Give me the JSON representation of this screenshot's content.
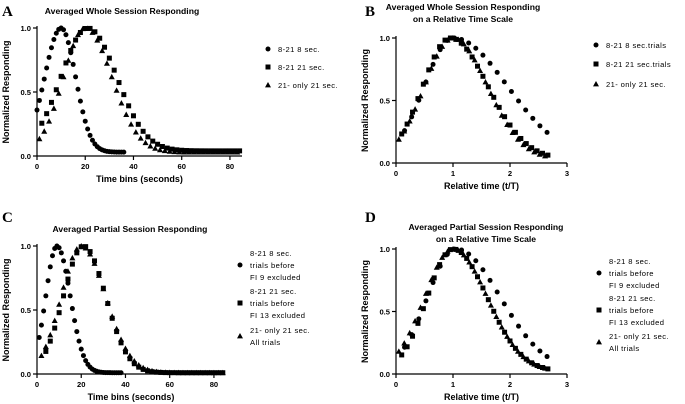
{
  "chart_data": [
    {
      "panel": "A",
      "type": "scatter",
      "title": "Averaged Whole Session Responding",
      "title2": "",
      "xlabel": "Time bins (seconds)",
      "ylabel": "Normalized Responding",
      "xlim": [
        0,
        85
      ],
      "ylim": [
        0,
        1.0
      ],
      "xticks": [
        0,
        20,
        40,
        60,
        80
      ],
      "yticks": [
        0.0,
        0.5,
        1.0
      ],
      "series": [
        {
          "name": "8-21 8 sec.",
          "marker": "circle",
          "shape": "gauss",
          "mu": 10,
          "s1": 6.8,
          "s2": 6.0,
          "base": 0.03,
          "start": 0,
          "step": 1,
          "stop": 36,
          "pad": 0.02
        },
        {
          "name": "8-21 21 sec.",
          "marker": "square",
          "shape": "gauss",
          "mu": 21,
          "s1": 11,
          "s2": 12,
          "base": 0.04,
          "start": 2,
          "step": 2,
          "stop": 84,
          "pad": 0.02
        },
        {
          "name": "21- only 21 sec.",
          "marker": "triangle",
          "shape": "gauss",
          "mu": 20,
          "s1": 9,
          "s2": 11,
          "base": 0.03,
          "start": 1,
          "step": 2,
          "stop": 83,
          "pad": 0.02
        }
      ],
      "legend": [
        [
          "8-21 8 sec."
        ],
        [
          "8-21 21 sec."
        ],
        [
          "21- only 21 sec."
        ]
      ]
    },
    {
      "panel": "B",
      "type": "scatter",
      "title": "Averaged Whole Session Responding",
      "title2": "on a Relative Time Scale",
      "xlabel": "Relative time (t/T)",
      "ylabel": "Normalized Responding",
      "xlim": [
        0,
        3.0
      ],
      "ylim": [
        0,
        1.0
      ],
      "xticks": [
        0,
        1,
        2,
        3
      ],
      "yticks": [
        0.0,
        0.5,
        1.0
      ],
      "series": [
        {
          "name": "8-21 8 sec.trials",
          "marker": "circle",
          "shape": "gauss",
          "mu": 1.0,
          "s1": 0.5,
          "s2": 0.95,
          "base": 0.03,
          "start": 0.15,
          "step": 0.125,
          "stop": 2.75,
          "pad": 0.015
        },
        {
          "name": "8-21 21 sec.trials",
          "marker": "square",
          "shape": "gauss",
          "mu": 0.95,
          "s1": 0.48,
          "s2": 0.66,
          "base": 0.03,
          "start": 0.1,
          "step": 0.095,
          "stop": 2.75,
          "pad": 0.015
        },
        {
          "name": "21- only 21 sec.",
          "marker": "triangle",
          "shape": "gauss",
          "mu": 1.0,
          "s1": 0.5,
          "s2": 0.6,
          "base": 0.03,
          "start": 0.05,
          "step": 0.095,
          "stop": 2.7,
          "pad": 0.015
        }
      ],
      "legend": [
        [
          "8-21 8 sec.trials"
        ],
        [
          "8-21 21 sec.trials"
        ],
        [
          "21- only 21 sec."
        ]
      ]
    },
    {
      "panel": "C",
      "type": "scatter",
      "title": "Averaged Partial Session Responding",
      "title2": "",
      "xlabel": "Time bins (seconds)",
      "ylabel": "Normalized Responding",
      "xlim": [
        0,
        85
      ],
      "ylim": [
        0,
        1.0
      ],
      "xticks": [
        0,
        20,
        40,
        60,
        80
      ],
      "yticks": [
        0.0,
        0.5,
        1.0
      ],
      "series": [
        {
          "name": "8-21 8 sec. trials before FI 9 excluded",
          "marker": "circle",
          "shape": "gauss",
          "mu": 9,
          "s1": 5,
          "s2": 6,
          "base": 0.01,
          "start": 1,
          "step": 1,
          "stop": 38,
          "pad": 0.01
        },
        {
          "name": "8-21 21 sec. trials before FI 13 excluded",
          "marker": "square",
          "shape": "gauss",
          "mu": 21,
          "s1": 9,
          "s2": 10,
          "base": 0.01,
          "start": 4,
          "step": 2,
          "stop": 84,
          "pad": 0.01
        },
        {
          "name": "21- only 21 sec. All trials",
          "marker": "triangle",
          "shape": "gauss",
          "mu": 20,
          "s1": 9,
          "s2": 11,
          "base": 0.01,
          "start": 2,
          "step": 2,
          "stop": 84,
          "pad": 0.01
        }
      ],
      "legend": [
        [
          "8-21 8 sec.",
          "trials before",
          "FI 9 excluded"
        ],
        [
          "8-21 21 sec.",
          "trials before",
          "FI 13 excluded"
        ],
        [
          "21- only 21 sec.",
          "All trials"
        ]
      ]
    },
    {
      "panel": "D",
      "type": "scatter",
      "title": "Averaged Partial Session Responding",
      "title2": "on a Relative Time Scale",
      "xlabel": "Relative time (t/T)",
      "ylabel": "Normalized Responding",
      "xlim": [
        0,
        3.0
      ],
      "ylim": [
        0,
        1.0
      ],
      "xticks": [
        0,
        1,
        2,
        3
      ],
      "yticks": [
        0.0,
        0.5,
        1.0
      ],
      "series": [
        {
          "name": "8-21 8 sec. trials before FI 9 excluded",
          "marker": "circle",
          "shape": "gauss",
          "mu": 1.05,
          "s1": 0.5,
          "s2": 0.78,
          "base": 0.02,
          "start": 0.15,
          "step": 0.125,
          "stop": 2.75,
          "pad": 0.01
        },
        {
          "name": "8-21 21 sec. trials before FI 13 excluded",
          "marker": "square",
          "shape": "gauss",
          "mu": 1.0,
          "s1": 0.45,
          "s2": 0.6,
          "base": 0.02,
          "start": 0.1,
          "step": 0.095,
          "stop": 2.75,
          "pad": 0.01
        },
        {
          "name": "21- only 21 sec. All trials",
          "marker": "triangle",
          "shape": "gauss",
          "mu": 1.0,
          "s1": 0.5,
          "s2": 0.6,
          "base": 0.02,
          "start": 0.05,
          "step": 0.095,
          "stop": 2.7,
          "pad": 0.01
        }
      ],
      "legend": [
        [
          "8-21 8 sec.",
          "trials before",
          "FI 9 excluded"
        ],
        [
          "8-21 21 sec.",
          "trials before",
          "FI 13 excluded"
        ],
        [
          "21- only 21 sec.",
          "All trials"
        ]
      ]
    }
  ]
}
